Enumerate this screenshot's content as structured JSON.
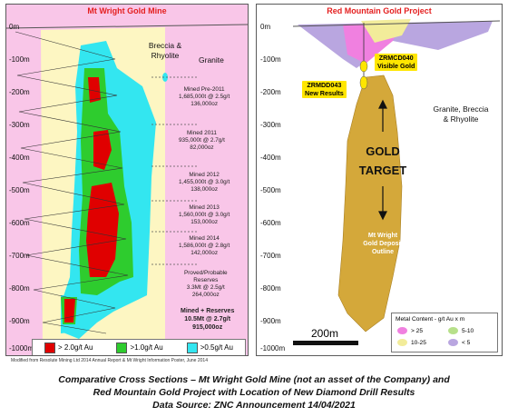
{
  "left_panel": {
    "title": "Mt Wright Gold Mine",
    "depth_labels": [
      "0m",
      "-100m",
      "-200m",
      "-300m",
      "-400m",
      "-500m",
      "-600m",
      "-700m",
      "-800m",
      "-900m",
      "-1000m"
    ],
    "rock_labels": {
      "breccia": "Breccia &\nRhyolite",
      "granite": "Granite"
    },
    "production": [
      {
        "title": "Mined Pre-2011",
        "tonnes": "1,685,000t @ 2.5g/t",
        "ounces": "136,000oz"
      },
      {
        "title": "Mined 2011",
        "tonnes": "935,000t @ 2.7g/t",
        "ounces": "82,000oz"
      },
      {
        "title": "Mined 2012",
        "tonnes": "1,455,000t @ 3.0g/t",
        "ounces": "138,000oz"
      },
      {
        "title": "Mined 2013",
        "tonnes": "1,560,000t @ 3.0g/t",
        "ounces": "153,000oz"
      },
      {
        "title": "Mined 2014",
        "tonnes": "1,586,000t @ 2.8g/t",
        "ounces": "142,000oz"
      }
    ],
    "reserves": {
      "line1": "Proved/Probable",
      "line2": "Reserves",
      "tonnes": "3.3Mt @ 2.5g/t",
      "ounces": "264,000oz"
    },
    "total": {
      "line1": "Mined + Reserves",
      "tonnes": "10.5Mt @ 2.7g/t",
      "ounces": "915,000oz"
    },
    "legend": [
      {
        "label": "> 2.0g/t Au",
        "color": "#e00000"
      },
      {
        "label": ">1.0g/t Au",
        "color": "#2ecc2e"
      },
      {
        "label": ">0.5g/t Au",
        "color": "#33e6f0"
      }
    ],
    "credit": "Modified from Resolute Mining Ltd 2014 Annual Report & Mt Wright Information Poster, June 2014"
  },
  "right_panel": {
    "title": "Red Mountain Gold Project",
    "depth_labels": [
      "0m",
      "-100m",
      "-200m",
      "-300m",
      "-400m",
      "-500m",
      "-600m",
      "-700m",
      "-800m",
      "-900m",
      "-1000m"
    ],
    "rock_label": "Granite, Breccia\n& Rhyolite",
    "callouts": [
      {
        "line1": "ZRMCD040",
        "line2": "Visible Gold"
      },
      {
        "line1": "ZRMDD043",
        "line2": "New Results"
      }
    ],
    "target": {
      "line1": "GOLD",
      "line2": "TARGET"
    },
    "deposit": {
      "line1": "Mt Wright",
      "line2": "Gold Deposit",
      "line3": "Outline"
    },
    "scale": "200m",
    "legend": {
      "title": "Metal Content - g/t Au x m",
      "items": [
        {
          "label": "> 25",
          "color": "#f080e0"
        },
        {
          "label": "5-10",
          "color": "#b7e08a"
        },
        {
          "label": "10-25",
          "color": "#f2ec9a"
        },
        {
          "label": "< 5",
          "color": "#b9a6e0"
        }
      ]
    },
    "colors": {
      "deposit": "#d4a83a",
      "granite": "#ffffff"
    }
  },
  "caption": {
    "line1": "Comparative Cross Sections – Mt Wright Gold Mine (not an asset of the Company) and",
    "line2": "Red Mountain Gold Project with Location of New Diamond Drill Results",
    "line3": "Data Source: ZNC Announcement 14/04/2021"
  }
}
